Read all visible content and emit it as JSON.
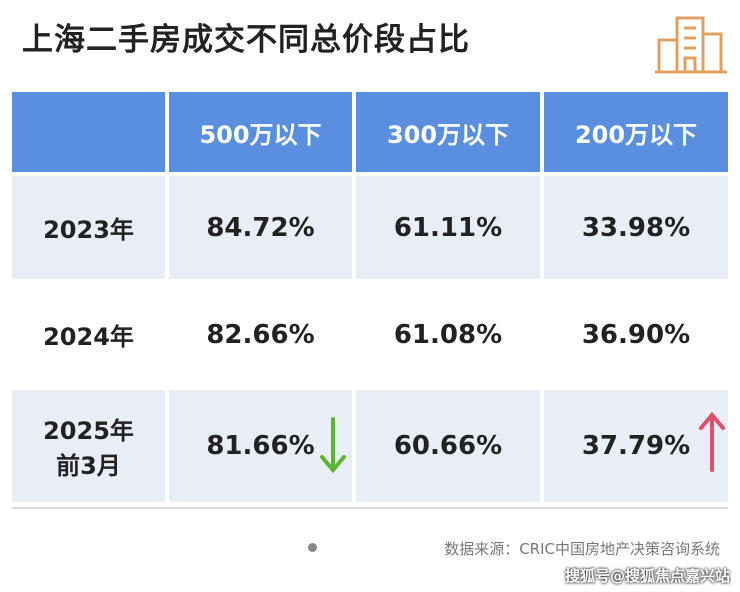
{
  "header": {
    "title": "上海二手房成交不同总价段占比"
  },
  "table": {
    "columns": [
      "500万以下",
      "300万以下",
      "200万以下"
    ],
    "rows": [
      {
        "label": [
          "2023年"
        ],
        "cells": [
          "84.72%",
          "61.11%",
          "33.98%"
        ]
      },
      {
        "label": [
          "2024年"
        ],
        "cells": [
          "82.66%",
          "61.08%",
          "36.90%"
        ]
      },
      {
        "label": [
          "2025年",
          "前3月"
        ],
        "cells": [
          "81.66%",
          "60.66%",
          "37.79%"
        ]
      }
    ]
  },
  "source": "数据来源：CRIC中国房地产决策咨询系统",
  "watermark": "搜狐号@搜狐焦点嘉兴站"
}
